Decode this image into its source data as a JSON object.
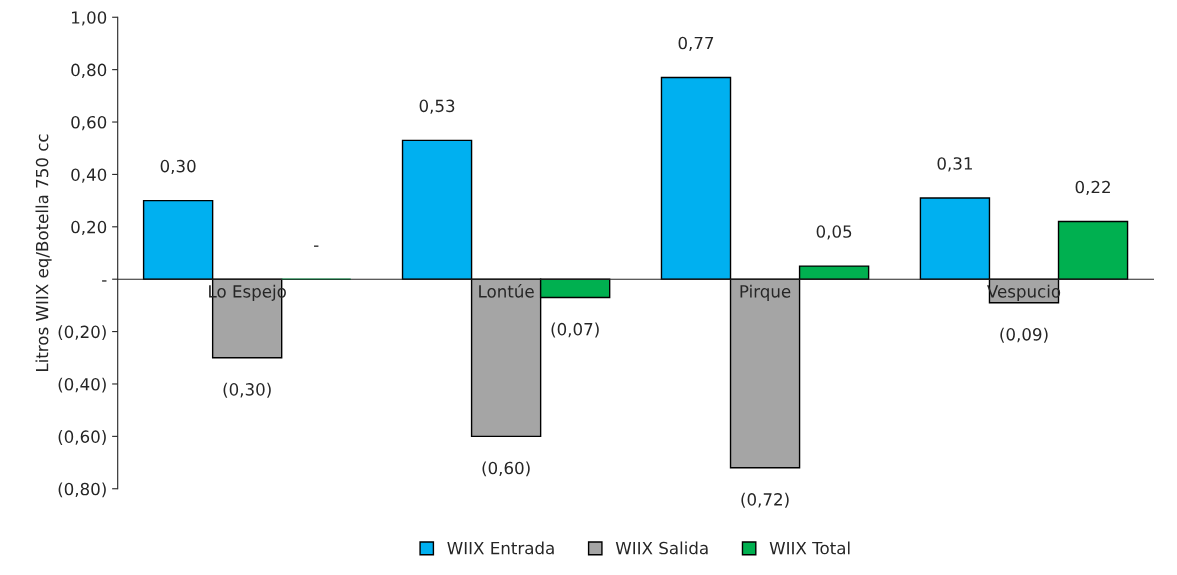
{
  "chart_data": {
    "type": "bar",
    "ylabel": "Litros WIIX eq/Botella 750 cc",
    "categories": [
      "Lo Espejo",
      "Lontúe",
      "Pirque",
      "Vespucio"
    ],
    "series": [
      {
        "name": "WIIX Entrada",
        "color": "#00b0f0",
        "values": [
          0.3,
          0.53,
          0.77,
          0.31
        ],
        "value_labels": [
          "0,30",
          "0,53",
          "0,77",
          "0,31"
        ]
      },
      {
        "name": "WIIX Salida",
        "color": "#a5a5a5",
        "values": [
          -0.3,
          -0.6,
          -0.72,
          -0.09
        ],
        "value_labels": [
          "(0,30)",
          "(0,60)",
          "(0,72)",
          "(0,09)"
        ]
      },
      {
        "name": "WIIX Total",
        "color": "#00b050",
        "values": [
          0,
          -0.07,
          0.05,
          0.22
        ],
        "value_labels": [
          "-",
          "(0,07)",
          "0,05",
          "0,22"
        ]
      }
    ],
    "ylim": [
      -0.8,
      1.0
    ],
    "yticks": [
      {
        "value": -0.8,
        "label": "(0,80)"
      },
      {
        "value": -0.6,
        "label": "(0,60)"
      },
      {
        "value": -0.4,
        "label": "(0,40)"
      },
      {
        "value": -0.2,
        "label": "(0,20)"
      },
      {
        "value": 0,
        "label": "-"
      },
      {
        "value": 0.2,
        "label": "0,20"
      },
      {
        "value": 0.4,
        "label": "0,40"
      },
      {
        "value": 0.6,
        "label": "0,60"
      },
      {
        "value": 0.8,
        "label": "0,80"
      },
      {
        "value": 1.0,
        "label": "1,00"
      }
    ],
    "grid": false,
    "legend": "bottom"
  }
}
